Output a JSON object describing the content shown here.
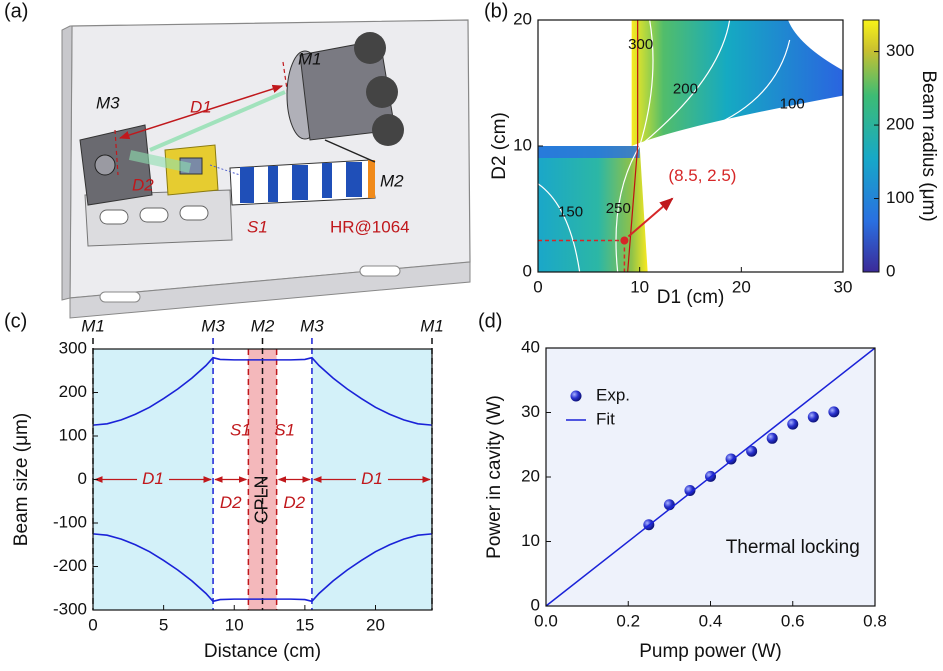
{
  "panel_labels": [
    "(a)",
    "(b)",
    "(c)",
    "(d)"
  ],
  "diagram": {
    "labels": [
      "M1",
      "D1",
      "M3",
      "D2",
      "M2",
      "S1",
      "HR@1064"
    ]
  },
  "chart_data": [
    {
      "type": "heatmap",
      "xlabel": "D1 (cm)",
      "ylabel": "D2 (cm)",
      "xlim": [
        0,
        30
      ],
      "ylim": [
        0,
        20
      ],
      "xticks": [
        0,
        10,
        20,
        30
      ],
      "yticks": [
        0,
        10,
        20
      ],
      "colorbar": {
        "label": "Beam radius (μm)",
        "lim": [
          0,
          343
        ],
        "ticks": [
          0,
          100,
          200,
          300
        ]
      },
      "contours": [
        {
          "level": 300,
          "x": 10.1,
          "y": 18
        },
        {
          "level": 200,
          "x": 14.5,
          "y": 14.5
        },
        {
          "level": 100,
          "x": 25,
          "y": 13.3
        },
        {
          "level": 150,
          "x": 3.2,
          "y": 4.7
        },
        {
          "level": 250,
          "x": 7.9,
          "y": 5
        }
      ],
      "point": {
        "label": "(8.5, 2.5)",
        "x": 8.5,
        "y": 2.5,
        "color": "#d62728"
      }
    },
    {
      "type": "line",
      "xlabel": "Distance (cm)",
      "ylabel": "Beam size (μm)",
      "xlim": [
        0,
        24
      ],
      "ylim": [
        -300,
        300
      ],
      "xticks": [
        0,
        5,
        10,
        15,
        20
      ],
      "yticks": [
        -300,
        -200,
        -100,
        0,
        100,
        200,
        300
      ],
      "x": [
        0,
        1,
        2,
        3,
        4,
        5,
        6,
        7,
        8,
        8.5,
        9,
        10,
        11,
        12,
        13,
        14,
        15,
        15.5,
        16,
        17,
        18,
        19,
        20,
        21,
        22,
        23,
        24
      ],
      "series": [
        {
          "color": "#1a22d8",
          "values": [
            125,
            128,
            137,
            150,
            166,
            186,
            208,
            233,
            262,
            280,
            276,
            275,
            275,
            275,
            275,
            275,
            276,
            280,
            262,
            233,
            208,
            186,
            166,
            150,
            137,
            128,
            125
          ]
        },
        {
          "color": "#1a22d8",
          "values": [
            -125,
            -128,
            -137,
            -150,
            -166,
            -186,
            -208,
            -233,
            -262,
            -280,
            -276,
            -275,
            -275,
            -275,
            -275,
            -275,
            -276,
            -280,
            -262,
            -233,
            -208,
            -186,
            -166,
            -150,
            -137,
            -128,
            -125
          ]
        }
      ],
      "mirrors": [
        {
          "label": "M1",
          "x": 0,
          "color": "#111111"
        },
        {
          "label": "M3",
          "x": 8.5,
          "color": "#1a22d8"
        },
        {
          "label": "M2",
          "x": 12,
          "color": "#111111"
        },
        {
          "label": "M3",
          "x": 15.5,
          "color": "#1a22d8"
        },
        {
          "label": "M1",
          "x": 24,
          "color": "#111111"
        }
      ],
      "crystal": {
        "label": "CPLN",
        "x": [
          11,
          13
        ]
      },
      "surfaces": [
        {
          "label": "S1",
          "x": 11
        },
        {
          "label": "S1",
          "x": 13
        }
      ],
      "distances": [
        {
          "label": "D1",
          "x": [
            0,
            8.5
          ]
        },
        {
          "label": "D2",
          "x": [
            8.5,
            11
          ]
        },
        {
          "label": "D2",
          "x": [
            13,
            15.5
          ]
        },
        {
          "label": "D1",
          "x": [
            15.5,
            24
          ]
        }
      ]
    },
    {
      "type": "scatter",
      "xlabel": "Pump power (W)",
      "ylabel": "Power in cavity (W)",
      "xlim": [
        0,
        0.8
      ],
      "ylim": [
        0,
        40
      ],
      "xticks": [
        {
          "value": 0,
          "label": "0.0"
        },
        0.2,
        0.4,
        0.6,
        0.8
      ],
      "yticks": [
        0,
        10,
        20,
        30,
        40
      ],
      "legend": "upper left",
      "annotation": "Thermal locking",
      "series": [
        {
          "name": "Exp.",
          "color": "#1a22d8",
          "x": [
            0.25,
            0.3,
            0.35,
            0.4,
            0.45,
            0.5,
            0.55,
            0.6,
            0.65,
            0.7
          ],
          "values": [
            12.6,
            15.7,
            17.9,
            20.1,
            22.8,
            24,
            26,
            28.2,
            29.3,
            30.1
          ]
        },
        {
          "name": "Fit",
          "color": "#1a22d8",
          "x": [
            0,
            0.8
          ],
          "values": [
            0,
            40
          ]
        }
      ]
    }
  ]
}
